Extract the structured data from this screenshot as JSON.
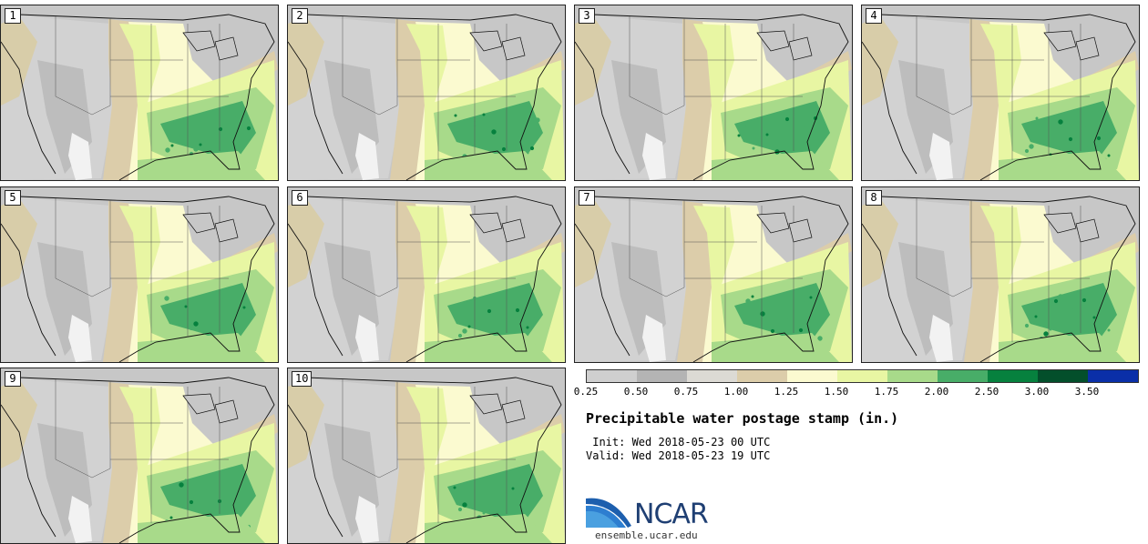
{
  "stamps": [
    {
      "label": "1"
    },
    {
      "label": "2"
    },
    {
      "label": "3"
    },
    {
      "label": "4"
    },
    {
      "label": "5"
    },
    {
      "label": "6"
    },
    {
      "label": "7"
    },
    {
      "label": "8"
    },
    {
      "label": "9"
    },
    {
      "label": "10"
    }
  ],
  "legend": {
    "ticks": [
      "0.25",
      "0.50",
      "0.75",
      "1.00",
      "1.25",
      "1.50",
      "1.75",
      "2.00",
      "2.50",
      "3.00",
      "3.50"
    ],
    "colors": [
      "#cfcfcf",
      "#b4b4b4",
      "#dcdad4",
      "#dccdaa",
      "#fbfad0",
      "#e8f6a3",
      "#a8da8a",
      "#48ad68",
      "#06813e",
      "#034f2b",
      "#0a2fa8"
    ]
  },
  "title": "Precipitable water postage stamp (in.)",
  "init": " Init: Wed 2018-05-23 00 UTC",
  "valid": "Valid: Wed 2018-05-23 19 UTC",
  "logo": {
    "text": "NCAR",
    "url": "ensemble.ucar.edu"
  }
}
